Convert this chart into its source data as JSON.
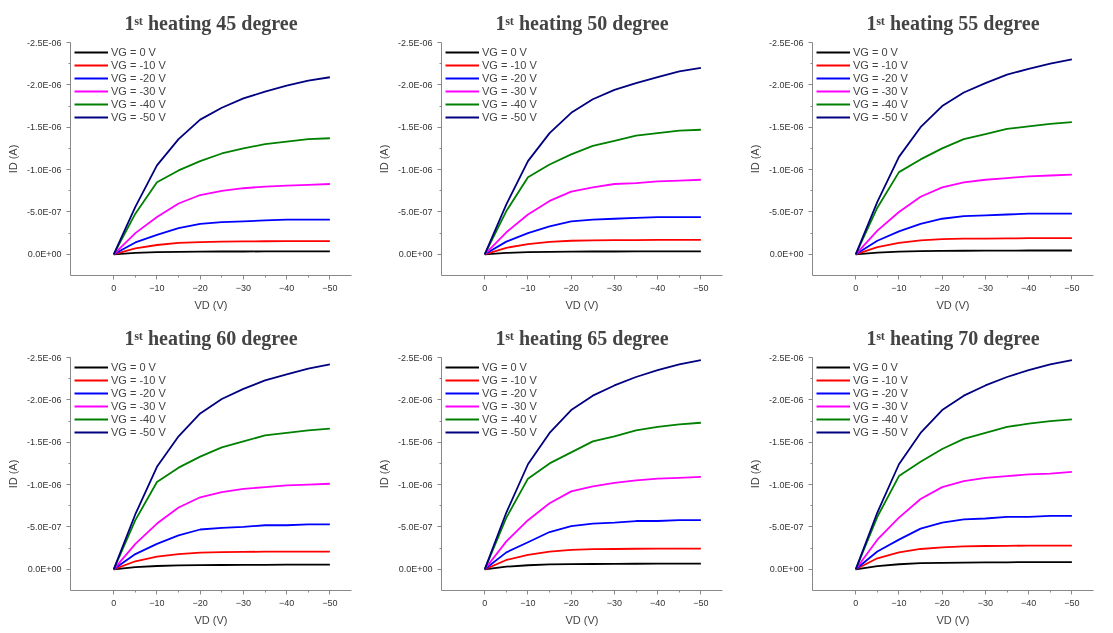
{
  "chart_data": [
    {
      "type": "line",
      "title": "1ˢᵗ heating 45 degree",
      "xlabel": "VD (V)",
      "ylabel": "ID (A)",
      "legend": "top left",
      "grid": false,
      "marker": "none",
      "line_style": "solid",
      "xlim": [
        10,
        -55
      ],
      "ylim": [
        2.5e-07,
        -2.5e-06
      ],
      "xticks": [
        0,
        -10,
        -20,
        -30,
        -40,
        -50
      ],
      "yticks": [
        {
          "value": 0,
          "label": "0.0E+00"
        },
        {
          "value": -5e-07,
          "label": "-5.0E-07"
        },
        {
          "value": -1e-06,
          "label": "-1.0E-06"
        },
        {
          "value": -1.5e-06,
          "label": "-1.5E-06"
        },
        {
          "value": -2e-06,
          "label": "-2.0E-06"
        },
        {
          "value": -2.5e-06,
          "label": "-2.5E-06"
        }
      ],
      "x": [
        0,
        -5,
        -10,
        -15,
        -20,
        -25,
        -30,
        -35,
        -40,
        -45,
        -50
      ],
      "series": [
        {
          "name": "VG = 0 V",
          "color": "#000000",
          "values": [
            0,
            -1.6e-08,
            -2.5e-08,
            -3e-08,
            -3.2e-08,
            -3.3e-08,
            -3.3e-08,
            -3.4e-08,
            -3.5e-08,
            -3.5e-08,
            -3.5e-08
          ]
        },
        {
          "name": "VG = -10 V",
          "color": "#ff0000",
          "values": [
            0,
            -7e-08,
            -1.1e-07,
            -1.35e-07,
            -1.45e-07,
            -1.5e-07,
            -1.52e-07,
            -1.54e-07,
            -1.55e-07,
            -1.55e-07,
            -1.55e-07
          ]
        },
        {
          "name": "VG = -20 V",
          "color": "#0000ff",
          "values": [
            0,
            -1.4e-07,
            -2.3e-07,
            -3.1e-07,
            -3.6e-07,
            -3.8e-07,
            -3.9e-07,
            -4e-07,
            -4.1e-07,
            -4.1e-07,
            -4.1e-07
          ]
        },
        {
          "name": "VG = -30 V",
          "color": "#ff00ff",
          "values": [
            0,
            -2.5e-07,
            -4.4e-07,
            -6e-07,
            -7e-07,
            -7.5e-07,
            -7.8e-07,
            -8e-07,
            -8.1e-07,
            -8.2e-07,
            -8.3e-07
          ]
        },
        {
          "name": "VG = -40 V",
          "color": "#008000",
          "values": [
            0,
            -4.8e-07,
            -8.5e-07,
            -9.9e-07,
            -1.1e-06,
            -1.19e-06,
            -1.25e-06,
            -1.3e-06,
            -1.33e-06,
            -1.36e-06,
            -1.37e-06
          ]
        },
        {
          "name": "VG = -50 V",
          "color": "#000080",
          "values": [
            0,
            -5.6e-07,
            -1.05e-06,
            -1.36e-06,
            -1.59e-06,
            -1.73e-06,
            -1.84e-06,
            -1.92e-06,
            -1.99e-06,
            -2.05e-06,
            -2.09e-06
          ]
        }
      ]
    },
    {
      "type": "line",
      "title": "1ˢᵗ heating 50 degree",
      "xlabel": "VD (V)",
      "ylabel": "ID (A)",
      "legend": "top left",
      "grid": false,
      "marker": "none",
      "line_style": "solid",
      "xlim": [
        10,
        -55
      ],
      "ylim": [
        2.5e-07,
        -2.5e-06
      ],
      "xticks": [
        0,
        -10,
        -20,
        -30,
        -40,
        -50
      ],
      "yticks": [
        {
          "value": 0,
          "label": "0.0E+00"
        },
        {
          "value": -5e-07,
          "label": "-5.0E-07"
        },
        {
          "value": -1e-06,
          "label": "-1.0E-06"
        },
        {
          "value": -1.5e-06,
          "label": "-1.5E-06"
        },
        {
          "value": -2e-06,
          "label": "-2.0E-06"
        },
        {
          "value": -2.5e-06,
          "label": "-2.5E-06"
        }
      ],
      "x": [
        0,
        -5,
        -10,
        -15,
        -20,
        -25,
        -30,
        -35,
        -40,
        -45,
        -50
      ],
      "series": [
        {
          "name": "VG = 0 V",
          "color": "#000000",
          "values": [
            0,
            -1.6e-08,
            -2.5e-08,
            -3e-08,
            -3.2e-08,
            -3.3e-08,
            -3.3e-08,
            -3.4e-08,
            -3.5e-08,
            -3.5e-08,
            -3.5e-08
          ]
        },
        {
          "name": "VG = -10 V",
          "color": "#ff0000",
          "values": [
            0,
            -7.7e-08,
            -1.2e-07,
            -1.48e-07,
            -1.6e-07,
            -1.65e-07,
            -1.67e-07,
            -1.68e-07,
            -1.7e-07,
            -1.7e-07,
            -1.7e-07
          ]
        },
        {
          "name": "VG = -20 V",
          "color": "#0000ff",
          "values": [
            0,
            -1.5e-07,
            -2.5e-07,
            -3.3e-07,
            -3.9e-07,
            -4.1e-07,
            -4.2e-07,
            -4.3e-07,
            -4.4e-07,
            -4.4e-07,
            -4.4e-07
          ]
        },
        {
          "name": "VG = -30 V",
          "color": "#ff00ff",
          "values": [
            0,
            -2.6e-07,
            -4.7e-07,
            -6.3e-07,
            -7.4e-07,
            -7.9e-07,
            -8.3e-07,
            -8.4e-07,
            -8.6e-07,
            -8.7e-07,
            -8.8e-07
          ]
        },
        {
          "name": "VG = -40 V",
          "color": "#008000",
          "values": [
            0,
            -5.1e-07,
            -9.1e-07,
            -1.06e-06,
            -1.18e-06,
            -1.28e-06,
            -1.34e-06,
            -1.4e-06,
            -1.43e-06,
            -1.46e-06,
            -1.47e-06
          ]
        },
        {
          "name": "VG = -50 V",
          "color": "#000080",
          "values": [
            0,
            -5.9e-07,
            -1.1e-06,
            -1.43e-06,
            -1.67e-06,
            -1.83e-06,
            -1.94e-06,
            -2.02e-06,
            -2.09e-06,
            -2.16e-06,
            -2.2e-06
          ]
        }
      ]
    },
    {
      "type": "line",
      "title": "1ˢᵗ heating 55 degree",
      "xlabel": "VD (V)",
      "ylabel": "ID (A)",
      "legend": "top left",
      "grid": false,
      "marker": "none",
      "line_style": "solid",
      "xlim": [
        10,
        -55
      ],
      "ylim": [
        2.5e-07,
        -2.5e-06
      ],
      "xticks": [
        0,
        -10,
        -20,
        -30,
        -40,
        -50
      ],
      "yticks": [
        {
          "value": 0,
          "label": "0.0E+00"
        },
        {
          "value": -5e-07,
          "label": "-5.0E-07"
        },
        {
          "value": -1e-06,
          "label": "-1.0E-06"
        },
        {
          "value": -1.5e-06,
          "label": "-1.5E-06"
        },
        {
          "value": -2e-06,
          "label": "-2.0E-06"
        },
        {
          "value": -2.5e-06,
          "label": "-2.5E-06"
        }
      ],
      "x": [
        0,
        -5,
        -10,
        -15,
        -20,
        -25,
        -30,
        -35,
        -40,
        -45,
        -50
      ],
      "series": [
        {
          "name": "VG = 0 V",
          "color": "#000000",
          "values": [
            0,
            -2e-08,
            -3.2e-08,
            -3.8e-08,
            -4e-08,
            -4.2e-08,
            -4.3e-08,
            -4.4e-08,
            -4.5e-08,
            -4.5e-08,
            -4.5e-08
          ]
        },
        {
          "name": "VG = -10 V",
          "color": "#ff0000",
          "values": [
            0,
            -8.5e-08,
            -1.35e-07,
            -1.65e-07,
            -1.8e-07,
            -1.85e-07,
            -1.86e-07,
            -1.88e-07,
            -1.9e-07,
            -1.9e-07,
            -1.9e-07
          ]
        },
        {
          "name": "VG = -20 V",
          "color": "#0000ff",
          "values": [
            0,
            -1.6e-07,
            -2.7e-07,
            -3.6e-07,
            -4.2e-07,
            -4.5e-07,
            -4.6e-07,
            -4.7e-07,
            -4.8e-07,
            -4.8e-07,
            -4.8e-07
          ]
        },
        {
          "name": "VG = -30 V",
          "color": "#ff00ff",
          "values": [
            0,
            -2.8e-07,
            -5e-07,
            -6.8e-07,
            -7.9e-07,
            -8.5e-07,
            -8.8e-07,
            -9e-07,
            -9.2e-07,
            -9.3e-07,
            -9.4e-07
          ]
        },
        {
          "name": "VG = -40 V",
          "color": "#008000",
          "values": [
            0,
            -5.5e-07,
            -9.7e-07,
            -1.12e-06,
            -1.25e-06,
            -1.36e-06,
            -1.42e-06,
            -1.48e-06,
            -1.51e-06,
            -1.54e-06,
            -1.56e-06
          ]
        },
        {
          "name": "VG = -50 V",
          "color": "#000080",
          "values": [
            0,
            -6.2e-07,
            -1.15e-06,
            -1.5e-06,
            -1.75e-06,
            -1.91e-06,
            -2.02e-06,
            -2.12e-06,
            -2.19e-06,
            -2.25e-06,
            -2.3e-06
          ]
        }
      ]
    },
    {
      "type": "line",
      "title": "1ˢᵗ heating 60 degree",
      "xlabel": "VD (V)",
      "ylabel": "ID (A)",
      "legend": "top left",
      "grid": false,
      "marker": "none",
      "line_style": "solid",
      "xlim": [
        10,
        -55
      ],
      "ylim": [
        2.5e-07,
        -2.5e-06
      ],
      "xticks": [
        0,
        -10,
        -20,
        -30,
        -40,
        -50
      ],
      "yticks": [
        {
          "value": 0,
          "label": "0.0E+00"
        },
        {
          "value": -5e-07,
          "label": "-5.0E-07"
        },
        {
          "value": -1e-06,
          "label": "-1.0E-06"
        },
        {
          "value": -1.5e-06,
          "label": "-1.5E-06"
        },
        {
          "value": -2e-06,
          "label": "-2.0E-06"
        },
        {
          "value": -2.5e-06,
          "label": "-2.5E-06"
        }
      ],
      "x": [
        0,
        -5,
        -10,
        -15,
        -20,
        -25,
        -30,
        -35,
        -40,
        -45,
        -50
      ],
      "series": [
        {
          "name": "VG = 0 V",
          "color": "#000000",
          "values": [
            0,
            -2.5e-08,
            -3.9e-08,
            -4.7e-08,
            -5e-08,
            -5.1e-08,
            -5.2e-08,
            -5.3e-08,
            -5.5e-08,
            -5.5e-08,
            -5.5e-08
          ]
        },
        {
          "name": "VG = -10 V",
          "color": "#ff0000",
          "values": [
            0,
            -9.5e-08,
            -1.5e-07,
            -1.8e-07,
            -1.97e-07,
            -2.04e-07,
            -2.06e-07,
            -2.08e-07,
            -2.1e-07,
            -2.1e-07,
            -2.1e-07
          ]
        },
        {
          "name": "VG = -20 V",
          "color": "#0000ff",
          "values": [
            0,
            -1.8e-07,
            -3e-07,
            -4e-07,
            -4.7e-07,
            -4.9e-07,
            -5e-07,
            -5.2e-07,
            -5.2e-07,
            -5.3e-07,
            -5.3e-07
          ]
        },
        {
          "name": "VG = -30 V",
          "color": "#ff00ff",
          "values": [
            0,
            -3e-07,
            -5.4e-07,
            -7.3e-07,
            -8.5e-07,
            -9.1e-07,
            -9.5e-07,
            -9.7e-07,
            -9.9e-07,
            -1e-06,
            -1.01e-06
          ]
        },
        {
          "name": "VG = -40 V",
          "color": "#008000",
          "values": [
            0,
            -5.8e-07,
            -1.03e-06,
            -1.2e-06,
            -1.33e-06,
            -1.44e-06,
            -1.51e-06,
            -1.58e-06,
            -1.61e-06,
            -1.64e-06,
            -1.66e-06
          ]
        },
        {
          "name": "VG = -50 V",
          "color": "#000080",
          "values": [
            0,
            -6.5e-07,
            -1.21e-06,
            -1.57e-06,
            -1.84e-06,
            -2.01e-06,
            -2.13e-06,
            -2.23e-06,
            -2.3e-06,
            -2.37e-06,
            -2.42e-06
          ]
        }
      ]
    },
    {
      "type": "line",
      "title": "1ˢᵗ heating 65 degree",
      "xlabel": "VD (V)",
      "ylabel": "ID (A)",
      "legend": "top left",
      "grid": false,
      "marker": "none",
      "line_style": "solid",
      "xlim": [
        10,
        -55
      ],
      "ylim": [
        2.5e-07,
        -2.5e-06
      ],
      "xticks": [
        0,
        -10,
        -20,
        -30,
        -40,
        -50
      ],
      "yticks": [
        {
          "value": 0,
          "label": "0.0E+00"
        },
        {
          "value": -5e-07,
          "label": "-5.0E-07"
        },
        {
          "value": -1e-06,
          "label": "-1.0E-06"
        },
        {
          "value": -1.5e-06,
          "label": "-1.5E-06"
        },
        {
          "value": -2e-06,
          "label": "-2.0E-06"
        },
        {
          "value": -2.5e-06,
          "label": "-2.5E-06"
        }
      ],
      "x": [
        0,
        -5,
        -10,
        -15,
        -20,
        -25,
        -30,
        -35,
        -40,
        -45,
        -50
      ],
      "series": [
        {
          "name": "VG = 0 V",
          "color": "#000000",
          "values": [
            0,
            -3.1e-08,
            -4.8e-08,
            -5.8e-08,
            -6.1e-08,
            -6.3e-08,
            -6.5e-08,
            -6.6e-08,
            -6.8e-08,
            -6.8e-08,
            -6.8e-08
          ]
        },
        {
          "name": "VG = -10 V",
          "color": "#ff0000",
          "values": [
            0,
            -1.1e-07,
            -1.7e-07,
            -2.1e-07,
            -2.3e-07,
            -2.38e-07,
            -2.4e-07,
            -2.43e-07,
            -2.45e-07,
            -2.45e-07,
            -2.45e-07
          ]
        },
        {
          "name": "VG = -20 V",
          "color": "#0000ff",
          "values": [
            0,
            -2e-07,
            -3.2e-07,
            -4.4e-07,
            -5.1e-07,
            -5.4e-07,
            -5.5e-07,
            -5.7e-07,
            -5.7e-07,
            -5.8e-07,
            -5.8e-07
          ]
        },
        {
          "name": "VG = -30 V",
          "color": "#ff00ff",
          "values": [
            0,
            -3.3e-07,
            -5.8e-07,
            -7.8e-07,
            -9.2e-07,
            -9.8e-07,
            -1.02e-06,
            -1.05e-06,
            -1.07e-06,
            -1.08e-06,
            -1.09e-06
          ]
        },
        {
          "name": "VG = -40 V",
          "color": "#008000",
          "values": [
            0,
            -6.1e-07,
            -1.07e-06,
            -1.25e-06,
            -1.38e-06,
            -1.51e-06,
            -1.57e-06,
            -1.64e-06,
            -1.68e-06,
            -1.71e-06,
            -1.73e-06
          ]
        },
        {
          "name": "VG = -50 V",
          "color": "#000080",
          "values": [
            0,
            -6.7e-07,
            -1.24e-06,
            -1.61e-06,
            -1.88e-06,
            -2.05e-06,
            -2.17e-06,
            -2.27e-06,
            -2.35e-06,
            -2.42e-06,
            -2.47e-06
          ]
        }
      ]
    },
    {
      "type": "line",
      "title": "1ˢᵗ heating 70 degree",
      "xlabel": "VD (V)",
      "ylabel": "ID (A)",
      "legend": "top left",
      "grid": false,
      "marker": "none",
      "line_style": "solid",
      "xlim": [
        10,
        -55
      ],
      "ylim": [
        2.5e-07,
        -2.5e-06
      ],
      "xticks": [
        0,
        -10,
        -20,
        -30,
        -40,
        -50
      ],
      "yticks": [
        {
          "value": 0,
          "label": "0.0E+00"
        },
        {
          "value": -5e-07,
          "label": "-5.0E-07"
        },
        {
          "value": -1e-06,
          "label": "-1.0E-06"
        },
        {
          "value": -1.5e-06,
          "label": "-1.5E-06"
        },
        {
          "value": -2e-06,
          "label": "-2.0E-06"
        },
        {
          "value": -2.5e-06,
          "label": "-2.5E-06"
        }
      ],
      "x": [
        0,
        -5,
        -10,
        -15,
        -20,
        -25,
        -30,
        -35,
        -40,
        -45,
        -50
      ],
      "series": [
        {
          "name": "VG = 0 V",
          "color": "#000000",
          "values": [
            0,
            -3.8e-08,
            -6e-08,
            -7.2e-08,
            -7.7e-08,
            -7.9e-08,
            -8.1e-08,
            -8.3e-08,
            -8.5e-08,
            -8.5e-08,
            -8.5e-08
          ]
        },
        {
          "name": "VG = -10 V",
          "color": "#ff0000",
          "values": [
            0,
            -1.3e-07,
            -2e-07,
            -2.4e-07,
            -2.6e-07,
            -2.7e-07,
            -2.75e-07,
            -2.77e-07,
            -2.8e-07,
            -2.8e-07,
            -2.8e-07
          ]
        },
        {
          "name": "VG = -20 V",
          "color": "#0000ff",
          "values": [
            0,
            -2.1e-07,
            -3.5e-07,
            -4.8e-07,
            -5.5e-07,
            -5.9e-07,
            -6e-07,
            -6.2e-07,
            -6.2e-07,
            -6.3e-07,
            -6.3e-07
          ]
        },
        {
          "name": "VG = -30 V",
          "color": "#ff00ff",
          "values": [
            0,
            -3.5e-07,
            -6.1e-07,
            -8.3e-07,
            -9.7e-07,
            -1.04e-06,
            -1.08e-06,
            -1.1e-06,
            -1.12e-06,
            -1.13e-06,
            -1.15e-06
          ]
        },
        {
          "name": "VG = -40 V",
          "color": "#008000",
          "values": [
            0,
            -6.2e-07,
            -1.1e-06,
            -1.27e-06,
            -1.42e-06,
            -1.54e-06,
            -1.61e-06,
            -1.68e-06,
            -1.72e-06,
            -1.75e-06,
            -1.77e-06
          ]
        },
        {
          "name": "VG = -50 V",
          "color": "#000080",
          "values": [
            0,
            -6.7e-07,
            -1.24e-06,
            -1.61e-06,
            -1.88e-06,
            -2.05e-06,
            -2.17e-06,
            -2.27e-06,
            -2.35e-06,
            -2.42e-06,
            -2.47e-06
          ]
        }
      ]
    }
  ]
}
